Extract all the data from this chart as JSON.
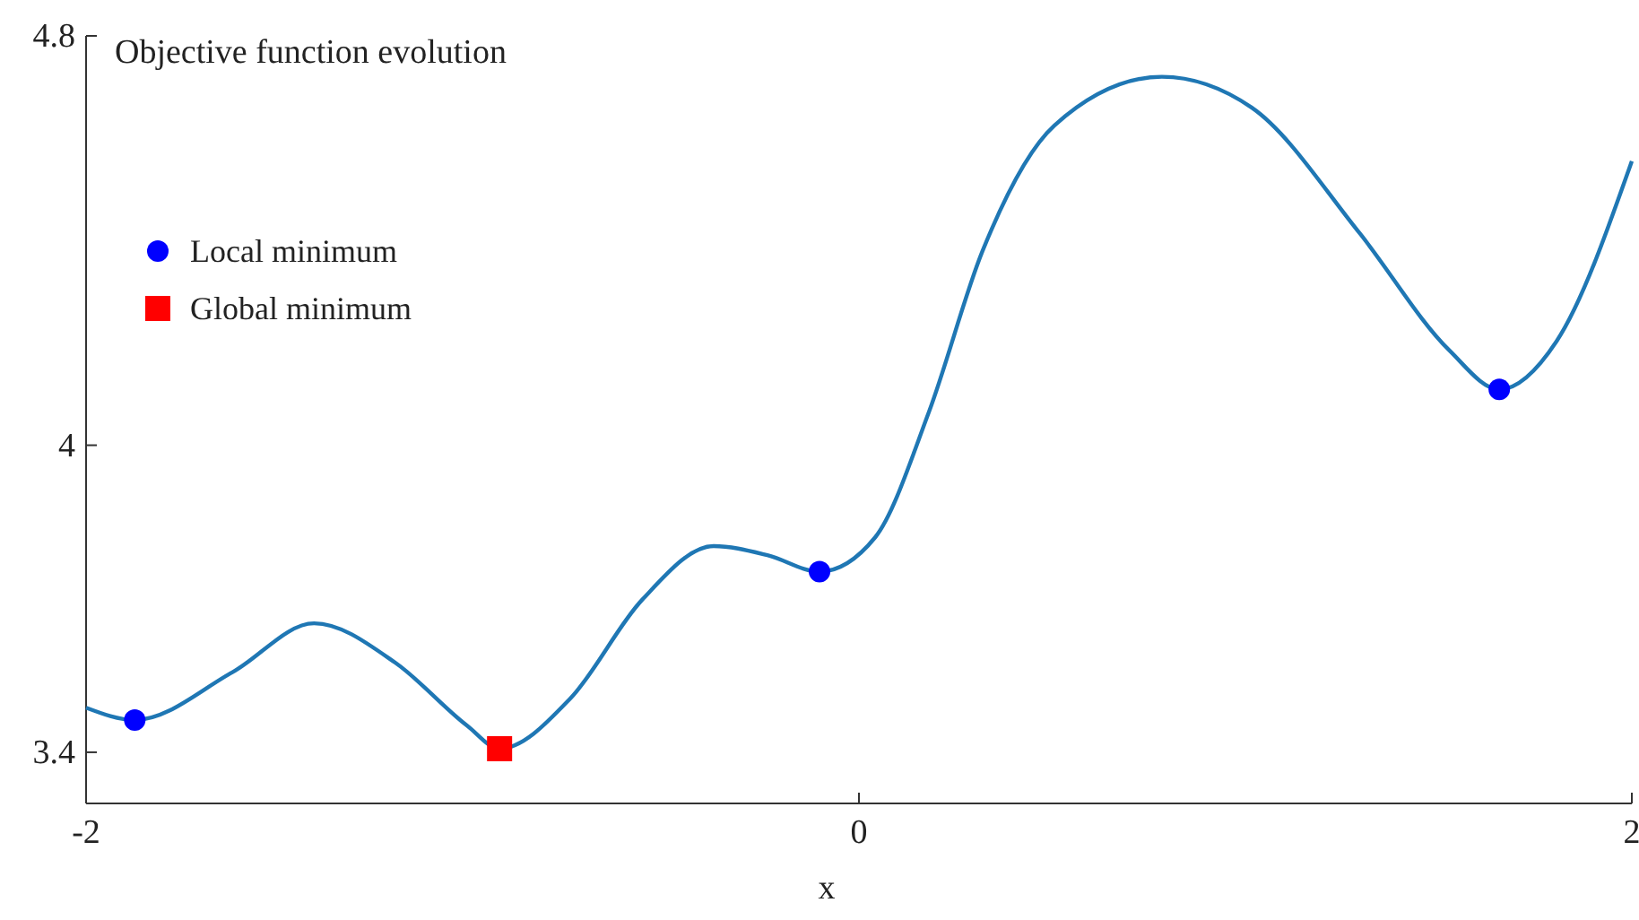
{
  "chart_data": {
    "type": "line",
    "title": "Objective function evolution",
    "xlabel": "x",
    "xlim": [
      -2,
      2
    ],
    "xticks": [
      -2,
      0,
      2
    ],
    "ylim": [
      3.3,
      4.8
    ],
    "yticks": [
      3.4,
      4,
      4.8
    ],
    "grid": false,
    "legend": "top left",
    "series": [
      {
        "color": "#1f77b4",
        "marker": "none",
        "x": [
          -2,
          -1.874,
          -1.62,
          -1.41,
          -1.2,
          -1.014,
          -0.93,
          -0.747,
          -0.561,
          -0.376,
          -0.237,
          -0.102,
          0.042,
          0.181,
          0.32,
          0.506,
          0.784,
          1.016,
          1.295,
          1.527,
          1.657,
          1.805,
          2
        ],
        "values": [
          3.487,
          3.463,
          3.557,
          3.652,
          3.575,
          3.452,
          3.407,
          3.505,
          3.698,
          3.803,
          3.785,
          3.753,
          3.82,
          4.065,
          4.38,
          4.625,
          4.72,
          4.66,
          4.415,
          4.186,
          4.109,
          4.203,
          4.555
        ]
      },
      {
        "type": "scatter",
        "name": "Local minimum",
        "color": "#0000ff",
        "marker": "circle",
        "x": [
          -1.874,
          -0.102,
          1.657
        ],
        "values": [
          3.463,
          3.753,
          4.109
        ]
      },
      {
        "type": "scatter",
        "name": "Global minimum",
        "color": "#ff0000",
        "marker": "square",
        "x": [
          -0.93
        ],
        "values": [
          3.407
        ]
      }
    ]
  }
}
